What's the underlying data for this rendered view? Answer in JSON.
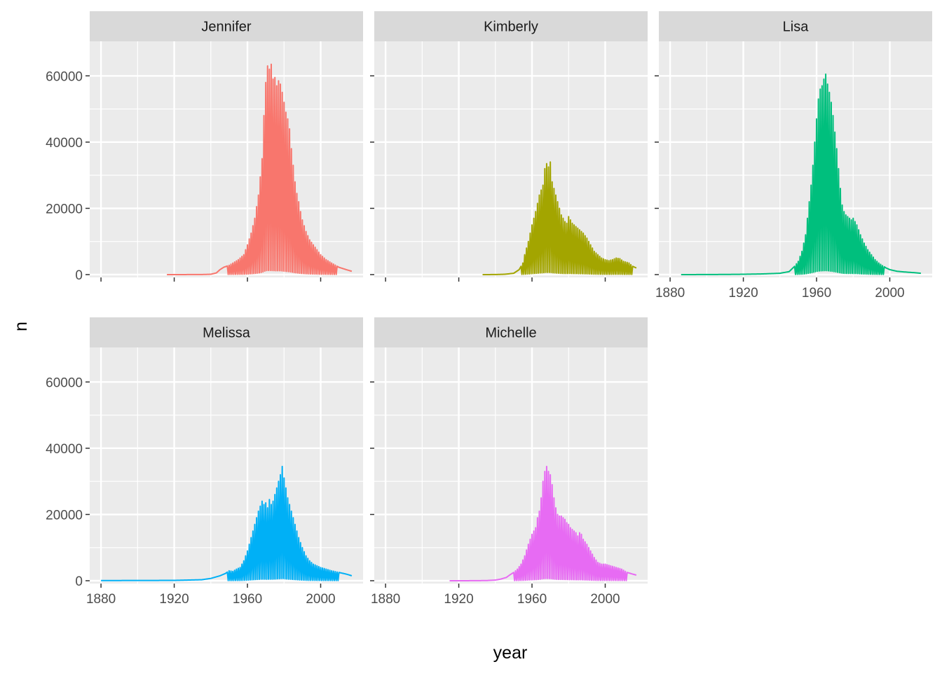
{
  "chart_data": {
    "type": "line",
    "facet_by": "name",
    "xlabel": "year",
    "ylabel": "n",
    "xlim": [
      1880,
      2017
    ],
    "ylim": [
      0,
      70000
    ],
    "x_ticks": [
      "1880",
      "1920",
      "1960",
      "2000"
    ],
    "y_ticks": [
      "0",
      "20000",
      "40000",
      "60000"
    ],
    "x_tick_values": [
      1880,
      1920,
      1960,
      2000
    ],
    "y_tick_values": [
      0,
      20000,
      40000,
      60000
    ],
    "x_minor_breaks": [
      1900,
      1940,
      1980
    ],
    "y_minor_breaks": [
      10000,
      30000,
      50000
    ],
    "grid": true,
    "legend": "none",
    "note": "",
    "series": [
      {
        "name": "Jennifer",
        "color": "#F8766D",
        "points": [
          [
            1916,
            5
          ],
          [
            1925,
            10
          ],
          [
            1935,
            30
          ],
          [
            1940,
            100
          ],
          [
            1943,
            500
          ],
          [
            1945,
            1500
          ],
          [
            1947,
            2200
          ],
          [
            1950,
            2800
          ],
          [
            1953,
            3800
          ],
          [
            1955,
            4500
          ],
          [
            1958,
            6000
          ],
          [
            1960,
            9000
          ],
          [
            1962,
            12500
          ],
          [
            1964,
            17000
          ],
          [
            1966,
            24000
          ],
          [
            1968,
            35000
          ],
          [
            1969,
            48000
          ],
          [
            1970,
            58000
          ],
          [
            1971,
            63000
          ],
          [
            1972,
            62000
          ],
          [
            1973,
            63500
          ],
          [
            1974,
            59000
          ],
          [
            1975,
            59500
          ],
          [
            1976,
            57000
          ],
          [
            1977,
            58500
          ],
          [
            1978,
            57500
          ],
          [
            1979,
            55000
          ],
          [
            1980,
            52000
          ],
          [
            1981,
            49000
          ],
          [
            1982,
            47000
          ],
          [
            1983,
            44000
          ],
          [
            1984,
            38000
          ],
          [
            1985,
            33000
          ],
          [
            1986,
            28000
          ],
          [
            1987,
            24500
          ],
          [
            1988,
            22000
          ],
          [
            1989,
            19000
          ],
          [
            1990,
            16500
          ],
          [
            1992,
            13000
          ],
          [
            1994,
            10500
          ],
          [
            1996,
            9000
          ],
          [
            1998,
            7500
          ],
          [
            2000,
            6000
          ],
          [
            2003,
            4500
          ],
          [
            2006,
            3500
          ],
          [
            2010,
            2200
          ],
          [
            2014,
            1500
          ],
          [
            2017,
            1000
          ]
        ]
      },
      {
        "name": "Kimberly",
        "color": "#A3A500",
        "points": [
          [
            1933,
            5
          ],
          [
            1940,
            20
          ],
          [
            1945,
            100
          ],
          [
            1950,
            400
          ],
          [
            1953,
            1500
          ],
          [
            1955,
            3500
          ],
          [
            1956,
            6000
          ],
          [
            1958,
            10000
          ],
          [
            1960,
            15000
          ],
          [
            1962,
            19000
          ],
          [
            1964,
            24000
          ],
          [
            1966,
            27000
          ],
          [
            1967,
            32000
          ],
          [
            1968,
            33500
          ],
          [
            1969,
            32500
          ],
          [
            1970,
            34000
          ],
          [
            1971,
            28000
          ],
          [
            1972,
            26000
          ],
          [
            1973,
            24000
          ],
          [
            1974,
            22000
          ],
          [
            1975,
            20000
          ],
          [
            1976,
            18000
          ],
          [
            1977,
            17000
          ],
          [
            1978,
            16000
          ],
          [
            1979,
            15500
          ],
          [
            1980,
            17500
          ],
          [
            1981,
            16500
          ],
          [
            1982,
            15500
          ],
          [
            1984,
            14500
          ],
          [
            1986,
            13500
          ],
          [
            1988,
            12500
          ],
          [
            1990,
            11000
          ],
          [
            1992,
            9000
          ],
          [
            1994,
            7000
          ],
          [
            1996,
            6000
          ],
          [
            1998,
            5000
          ],
          [
            2000,
            4500
          ],
          [
            2002,
            4200
          ],
          [
            2004,
            4500
          ],
          [
            2006,
            5000
          ],
          [
            2008,
            4800
          ],
          [
            2010,
            4000
          ],
          [
            2013,
            3500
          ],
          [
            2015,
            2500
          ],
          [
            2017,
            2000
          ]
        ]
      },
      {
        "name": "Lisa",
        "color": "#00BF7D",
        "points": [
          [
            1886,
            5
          ],
          [
            1900,
            20
          ],
          [
            1910,
            50
          ],
          [
            1920,
            100
          ],
          [
            1930,
            200
          ],
          [
            1940,
            400
          ],
          [
            1945,
            900
          ],
          [
            1948,
            2500
          ],
          [
            1950,
            4000
          ],
          [
            1952,
            7000
          ],
          [
            1954,
            12000
          ],
          [
            1955,
            17000
          ],
          [
            1956,
            22000
          ],
          [
            1957,
            27000
          ],
          [
            1958,
            33000
          ],
          [
            1959,
            40000
          ],
          [
            1960,
            47000
          ],
          [
            1961,
            53000
          ],
          [
            1962,
            56000
          ],
          [
            1963,
            57000
          ],
          [
            1964,
            59000
          ],
          [
            1965,
            60500
          ],
          [
            1966,
            57500
          ],
          [
            1967,
            55000
          ],
          [
            1968,
            52000
          ],
          [
            1969,
            48000
          ],
          [
            1970,
            43000
          ],
          [
            1971,
            38000
          ],
          [
            1972,
            32000
          ],
          [
            1973,
            26000
          ],
          [
            1974,
            21000
          ],
          [
            1975,
            19000
          ],
          [
            1976,
            18000
          ],
          [
            1977,
            17500
          ],
          [
            1978,
            17000
          ],
          [
            1979,
            16500
          ],
          [
            1980,
            17000
          ],
          [
            1982,
            15000
          ],
          [
            1984,
            12000
          ],
          [
            1986,
            9500
          ],
          [
            1988,
            7500
          ],
          [
            1990,
            6000
          ],
          [
            1992,
            4500
          ],
          [
            1994,
            3500
          ],
          [
            1996,
            2700
          ],
          [
            1998,
            2000
          ],
          [
            2000,
            1500
          ],
          [
            2004,
            1000
          ],
          [
            2008,
            800
          ],
          [
            2013,
            600
          ],
          [
            2017,
            400
          ]
        ]
      },
      {
        "name": "Melissa",
        "color": "#00B0F6",
        "points": [
          [
            1880,
            50
          ],
          [
            1900,
            80
          ],
          [
            1920,
            100
          ],
          [
            1935,
            300
          ],
          [
            1940,
            700
          ],
          [
            1945,
            1500
          ],
          [
            1948,
            2200
          ],
          [
            1950,
            3000
          ],
          [
            1952,
            2800
          ],
          [
            1954,
            3500
          ],
          [
            1956,
            4000
          ],
          [
            1958,
            6000
          ],
          [
            1960,
            9000
          ],
          [
            1962,
            13000
          ],
          [
            1964,
            17000
          ],
          [
            1966,
            21000
          ],
          [
            1968,
            24000
          ],
          [
            1969,
            23000
          ],
          [
            1970,
            23500
          ],
          [
            1971,
            22000
          ],
          [
            1972,
            24500
          ],
          [
            1973,
            23000
          ],
          [
            1974,
            24000
          ],
          [
            1975,
            26000
          ],
          [
            1976,
            28000
          ],
          [
            1977,
            30000
          ],
          [
            1978,
            32000
          ],
          [
            1979,
            34500
          ],
          [
            1980,
            31000
          ],
          [
            1981,
            28000
          ],
          [
            1982,
            25000
          ],
          [
            1983,
            23000
          ],
          [
            1984,
            21000
          ],
          [
            1985,
            19000
          ],
          [
            1986,
            17000
          ],
          [
            1987,
            15000
          ],
          [
            1988,
            13000
          ],
          [
            1990,
            10000
          ],
          [
            1992,
            7500
          ],
          [
            1994,
            6000
          ],
          [
            1996,
            5000
          ],
          [
            1998,
            4500
          ],
          [
            2000,
            4000
          ],
          [
            2003,
            3500
          ],
          [
            2006,
            3000
          ],
          [
            2010,
            2500
          ],
          [
            2014,
            2000
          ],
          [
            2017,
            1500
          ]
        ]
      },
      {
        "name": "Michelle",
        "color": "#E76BF3",
        "points": [
          [
            1915,
            5
          ],
          [
            1925,
            10
          ],
          [
            1935,
            50
          ],
          [
            1940,
            200
          ],
          [
            1943,
            500
          ],
          [
            1946,
            1000
          ],
          [
            1948,
            1800
          ],
          [
            1950,
            2500
          ],
          [
            1952,
            3500
          ],
          [
            1954,
            5000
          ],
          [
            1956,
            7500
          ],
          [
            1958,
            11000
          ],
          [
            1960,
            14000
          ],
          [
            1962,
            16000
          ],
          [
            1963,
            19000
          ],
          [
            1964,
            21000
          ],
          [
            1965,
            25000
          ],
          [
            1966,
            30000
          ],
          [
            1967,
            33000
          ],
          [
            1968,
            34500
          ],
          [
            1969,
            33000
          ],
          [
            1970,
            32000
          ],
          [
            1971,
            29000
          ],
          [
            1972,
            25000
          ],
          [
            1973,
            22000
          ],
          [
            1974,
            20000
          ],
          [
            1975,
            19500
          ],
          [
            1976,
            19500
          ],
          [
            1977,
            19000
          ],
          [
            1978,
            18500
          ],
          [
            1979,
            17500
          ],
          [
            1980,
            17000
          ],
          [
            1981,
            16000
          ],
          [
            1982,
            15500
          ],
          [
            1983,
            15000
          ],
          [
            1984,
            14500
          ],
          [
            1985,
            13500
          ],
          [
            1986,
            14500
          ],
          [
            1987,
            14000
          ],
          [
            1988,
            12500
          ],
          [
            1990,
            11000
          ],
          [
            1992,
            9000
          ],
          [
            1994,
            7000
          ],
          [
            1996,
            5500
          ],
          [
            1998,
            5000
          ],
          [
            2000,
            5000
          ],
          [
            2003,
            4500
          ],
          [
            2006,
            4000
          ],
          [
            2009,
            3500
          ],
          [
            2012,
            2500
          ],
          [
            2015,
            2000
          ],
          [
            2017,
            1700
          ]
        ]
      }
    ]
  }
}
